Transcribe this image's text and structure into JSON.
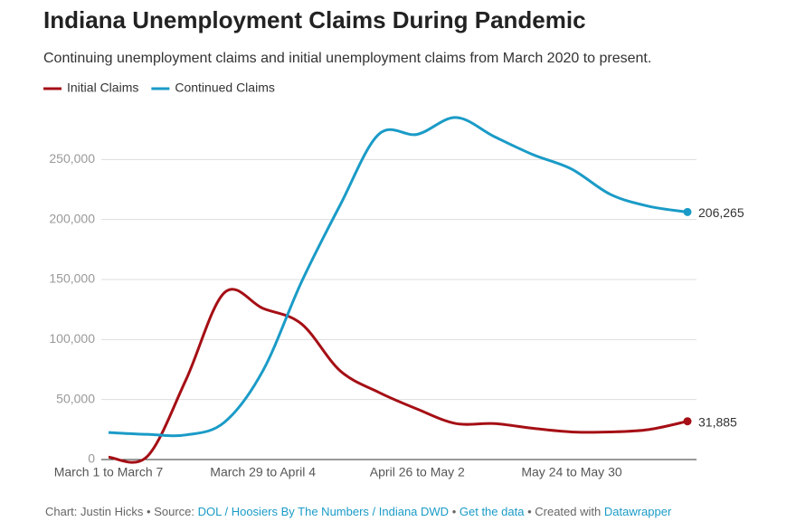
{
  "chart_data": {
    "type": "line",
    "title": "Indiana Unemployment Claims During Pandemic",
    "subtitle": "Continuing unemployment claims and initial unemployment claims from March 2020 to present.",
    "categories": [
      "March 1 to March 7",
      null,
      null,
      null,
      "March 29 to April 4",
      null,
      null,
      null,
      "April 26 to May 2",
      null,
      null,
      null,
      "May 24 to May 30",
      null,
      null,
      null
    ],
    "series": [
      {
        "name": "Initial Claims",
        "color": "#a50f15",
        "values": [
          2000,
          2500,
          66000,
          139000,
          126000,
          113000,
          74000,
          56000,
          42000,
          30000,
          30000,
          26000,
          23000,
          23000,
          25000,
          31885
        ],
        "value_labels": [
          null,
          null,
          null,
          null,
          null,
          null,
          null,
          null,
          null,
          null,
          null,
          null,
          null,
          null,
          null,
          "31,885"
        ]
      },
      {
        "name": "Continued Claims",
        "color": "#1a9bc7",
        "values": [
          22500,
          21000,
          20500,
          31000,
          74000,
          148000,
          212000,
          271000,
          271000,
          285000,
          269000,
          254000,
          242000,
          221000,
          211000,
          206265
        ],
        "value_labels": [
          null,
          null,
          null,
          null,
          null,
          null,
          null,
          null,
          null,
          null,
          null,
          null,
          null,
          null,
          null,
          "206,265"
        ]
      }
    ],
    "ylim": [
      0,
      300000
    ],
    "yticks": [
      0,
      {
        "value": 50000,
        "label": "50,000"
      },
      {
        "value": 100000,
        "label": "100,000"
      },
      {
        "value": 150000,
        "label": "150,000"
      },
      {
        "value": 200000,
        "label": "200,000"
      },
      {
        "value": 250000,
        "label": "250,000"
      }
    ],
    "grid": true
  },
  "footer": {
    "credit": "Chart: Justin Hicks",
    "separator": "•",
    "source_label": "Source:",
    "source": "DOL / Hoosiers By The Numbers / Indiana DWD",
    "get_data": "Get the data",
    "created": "Created with",
    "tool": "Datawrapper"
  }
}
